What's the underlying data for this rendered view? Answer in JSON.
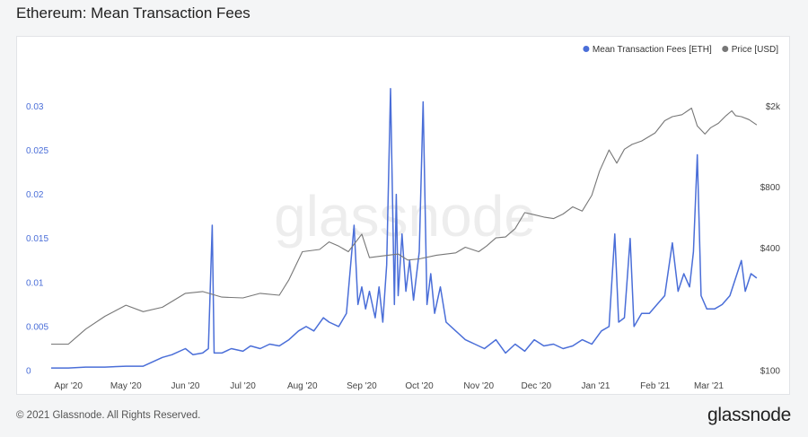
{
  "page": {
    "title": "Ethereum: Mean Transaction Fees",
    "copyright": "© 2021 Glassnode. All Rights Reserved.",
    "logo_text": "glassnode",
    "watermark_text": "glassnode"
  },
  "chart_data": {
    "type": "line",
    "title": "Ethereum: Mean Transaction Fees",
    "legend_position": "top-right",
    "legend": [
      {
        "label": "Mean Transaction Fees [ETH]",
        "color": "#4a6ed8"
      },
      {
        "label": "Price [USD]",
        "color": "#777777"
      }
    ],
    "x_tick_labels": [
      "Apr '20",
      "May '20",
      "Jun '20",
      "Jul '20",
      "Aug '20",
      "Sep '20",
      "Oct '20",
      "Nov '20",
      "Dec '20",
      "Jan '21",
      "Feb '21",
      "Mar '21"
    ],
    "x_range": [
      "2020-03-23",
      "2021-03-27"
    ],
    "y_left": {
      "range": [
        0,
        0.033
      ],
      "ticks": [
        0,
        0.005,
        0.01,
        0.015,
        0.02,
        0.025,
        0.03
      ],
      "tick_labels": [
        "0",
        "0.005",
        "0.01",
        "0.015",
        "0.02",
        "0.025",
        "0.03"
      ],
      "color": "#4a6ed8"
    },
    "y_right": {
      "scale": "log",
      "range": [
        100,
        2700
      ],
      "ticks": [
        100,
        400,
        800,
        2000
      ],
      "tick_labels": [
        "$100",
        "$400",
        "$800",
        "$2k"
      ]
    },
    "grid": false,
    "series": [
      {
        "name": "Mean Transaction Fees [ETH]",
        "axis": "left",
        "color": "#4a6ed8",
        "points": [
          [
            "2020-03-23",
            0.0003
          ],
          [
            "2020-04-01",
            0.0003
          ],
          [
            "2020-04-10",
            0.0004
          ],
          [
            "2020-04-20",
            0.0004
          ],
          [
            "2020-05-01",
            0.0005
          ],
          [
            "2020-05-10",
            0.0005
          ],
          [
            "2020-05-15",
            0.001
          ],
          [
            "2020-05-20",
            0.0015
          ],
          [
            "2020-05-25",
            0.0018
          ],
          [
            "2020-06-01",
            0.0025
          ],
          [
            "2020-06-05",
            0.0018
          ],
          [
            "2020-06-10",
            0.002
          ],
          [
            "2020-06-13",
            0.0025
          ],
          [
            "2020-06-15",
            0.0165
          ],
          [
            "2020-06-16",
            0.002
          ],
          [
            "2020-06-20",
            0.002
          ],
          [
            "2020-06-25",
            0.0025
          ],
          [
            "2020-07-01",
            0.0022
          ],
          [
            "2020-07-05",
            0.0028
          ],
          [
            "2020-07-10",
            0.0025
          ],
          [
            "2020-07-15",
            0.003
          ],
          [
            "2020-07-20",
            0.0028
          ],
          [
            "2020-07-25",
            0.0035
          ],
          [
            "2020-07-30",
            0.0045
          ],
          [
            "2020-08-03",
            0.005
          ],
          [
            "2020-08-07",
            0.0045
          ],
          [
            "2020-08-12",
            0.006
          ],
          [
            "2020-08-15",
            0.0055
          ],
          [
            "2020-08-20",
            0.005
          ],
          [
            "2020-08-24",
            0.0065
          ],
          [
            "2020-08-28",
            0.0165
          ],
          [
            "2020-08-30",
            0.0075
          ],
          [
            "2020-09-01",
            0.0095
          ],
          [
            "2020-09-03",
            0.007
          ],
          [
            "2020-09-05",
            0.009
          ],
          [
            "2020-09-08",
            0.006
          ],
          [
            "2020-09-10",
            0.0095
          ],
          [
            "2020-09-12",
            0.0055
          ],
          [
            "2020-09-14",
            0.012
          ],
          [
            "2020-09-16",
            0.032
          ],
          [
            "2020-09-18",
            0.0075
          ],
          [
            "2020-09-19",
            0.02
          ],
          [
            "2020-09-20",
            0.0085
          ],
          [
            "2020-09-22",
            0.0155
          ],
          [
            "2020-09-24",
            0.009
          ],
          [
            "2020-09-26",
            0.0125
          ],
          [
            "2020-09-28",
            0.008
          ],
          [
            "2020-10-01",
            0.0135
          ],
          [
            "2020-10-03",
            0.0305
          ],
          [
            "2020-10-05",
            0.0075
          ],
          [
            "2020-10-07",
            0.011
          ],
          [
            "2020-10-09",
            0.0065
          ],
          [
            "2020-10-12",
            0.0095
          ],
          [
            "2020-10-15",
            0.0055
          ],
          [
            "2020-10-20",
            0.0045
          ],
          [
            "2020-10-25",
            0.0035
          ],
          [
            "2020-10-30",
            0.003
          ],
          [
            "2020-11-04",
            0.0025
          ],
          [
            "2020-11-10",
            0.0035
          ],
          [
            "2020-11-15",
            0.002
          ],
          [
            "2020-11-20",
            0.003
          ],
          [
            "2020-11-25",
            0.0022
          ],
          [
            "2020-11-30",
            0.0035
          ],
          [
            "2020-12-05",
            0.0028
          ],
          [
            "2020-12-10",
            0.003
          ],
          [
            "2020-12-15",
            0.0025
          ],
          [
            "2020-12-20",
            0.0028
          ],
          [
            "2020-12-25",
            0.0035
          ],
          [
            "2020-12-30",
            0.003
          ],
          [
            "2021-01-04",
            0.0045
          ],
          [
            "2021-01-08",
            0.005
          ],
          [
            "2021-01-11",
            0.0155
          ],
          [
            "2021-01-13",
            0.0055
          ],
          [
            "2021-01-16",
            0.006
          ],
          [
            "2021-01-19",
            0.015
          ],
          [
            "2021-01-21",
            0.005
          ],
          [
            "2021-01-25",
            0.0065
          ],
          [
            "2021-01-29",
            0.0065
          ],
          [
            "2021-02-02",
            0.0075
          ],
          [
            "2021-02-06",
            0.0085
          ],
          [
            "2021-02-10",
            0.0145
          ],
          [
            "2021-02-13",
            0.009
          ],
          [
            "2021-02-16",
            0.011
          ],
          [
            "2021-02-19",
            0.0095
          ],
          [
            "2021-02-21",
            0.0135
          ],
          [
            "2021-02-23",
            0.0245
          ],
          [
            "2021-02-25",
            0.0085
          ],
          [
            "2021-02-28",
            0.007
          ],
          [
            "2021-03-04",
            0.007
          ],
          [
            "2021-03-08",
            0.0075
          ],
          [
            "2021-03-12",
            0.0085
          ],
          [
            "2021-03-15",
            0.0105
          ],
          [
            "2021-03-18",
            0.0125
          ],
          [
            "2021-03-20",
            0.009
          ],
          [
            "2021-03-23",
            0.011
          ],
          [
            "2021-03-26",
            0.0105
          ]
        ]
      },
      {
        "name": "Price [USD]",
        "axis": "right",
        "color": "#777777",
        "points": [
          [
            "2020-03-23",
            135
          ],
          [
            "2020-04-01",
            135
          ],
          [
            "2020-04-10",
            160
          ],
          [
            "2020-04-20",
            185
          ],
          [
            "2020-05-01",
            210
          ],
          [
            "2020-05-10",
            195
          ],
          [
            "2020-05-20",
            205
          ],
          [
            "2020-06-01",
            240
          ],
          [
            "2020-06-10",
            245
          ],
          [
            "2020-06-20",
            230
          ],
          [
            "2020-07-01",
            228
          ],
          [
            "2020-07-10",
            240
          ],
          [
            "2020-07-20",
            235
          ],
          [
            "2020-07-25",
            280
          ],
          [
            "2020-08-01",
            385
          ],
          [
            "2020-08-10",
            395
          ],
          [
            "2020-08-15",
            430
          ],
          [
            "2020-08-20",
            410
          ],
          [
            "2020-08-25",
            385
          ],
          [
            "2020-09-01",
            470
          ],
          [
            "2020-09-05",
            360
          ],
          [
            "2020-09-10",
            365
          ],
          [
            "2020-09-20",
            375
          ],
          [
            "2020-09-25",
            350
          ],
          [
            "2020-10-01",
            355
          ],
          [
            "2020-10-10",
            370
          ],
          [
            "2020-10-20",
            380
          ],
          [
            "2020-10-25",
            405
          ],
          [
            "2020-11-01",
            385
          ],
          [
            "2020-11-05",
            410
          ],
          [
            "2020-11-10",
            450
          ],
          [
            "2020-11-15",
            455
          ],
          [
            "2020-11-20",
            500
          ],
          [
            "2020-11-25",
            600
          ],
          [
            "2020-11-30",
            585
          ],
          [
            "2020-12-05",
            570
          ],
          [
            "2020-12-10",
            560
          ],
          [
            "2020-12-15",
            590
          ],
          [
            "2020-12-20",
            640
          ],
          [
            "2020-12-25",
            610
          ],
          [
            "2020-12-30",
            730
          ],
          [
            "2021-01-03",
            960
          ],
          [
            "2021-01-08",
            1220
          ],
          [
            "2021-01-12",
            1050
          ],
          [
            "2021-01-16",
            1230
          ],
          [
            "2021-01-20",
            1300
          ],
          [
            "2021-01-25",
            1350
          ],
          [
            "2021-02-01",
            1480
          ],
          [
            "2021-02-06",
            1700
          ],
          [
            "2021-02-10",
            1780
          ],
          [
            "2021-02-15",
            1820
          ],
          [
            "2021-02-20",
            1960
          ],
          [
            "2021-02-23",
            1600
          ],
          [
            "2021-02-27",
            1460
          ],
          [
            "2021-03-02",
            1570
          ],
          [
            "2021-03-06",
            1650
          ],
          [
            "2021-03-10",
            1800
          ],
          [
            "2021-03-13",
            1900
          ],
          [
            "2021-03-15",
            1800
          ],
          [
            "2021-03-18",
            1780
          ],
          [
            "2021-03-22",
            1720
          ],
          [
            "2021-03-26",
            1620
          ]
        ]
      }
    ]
  }
}
